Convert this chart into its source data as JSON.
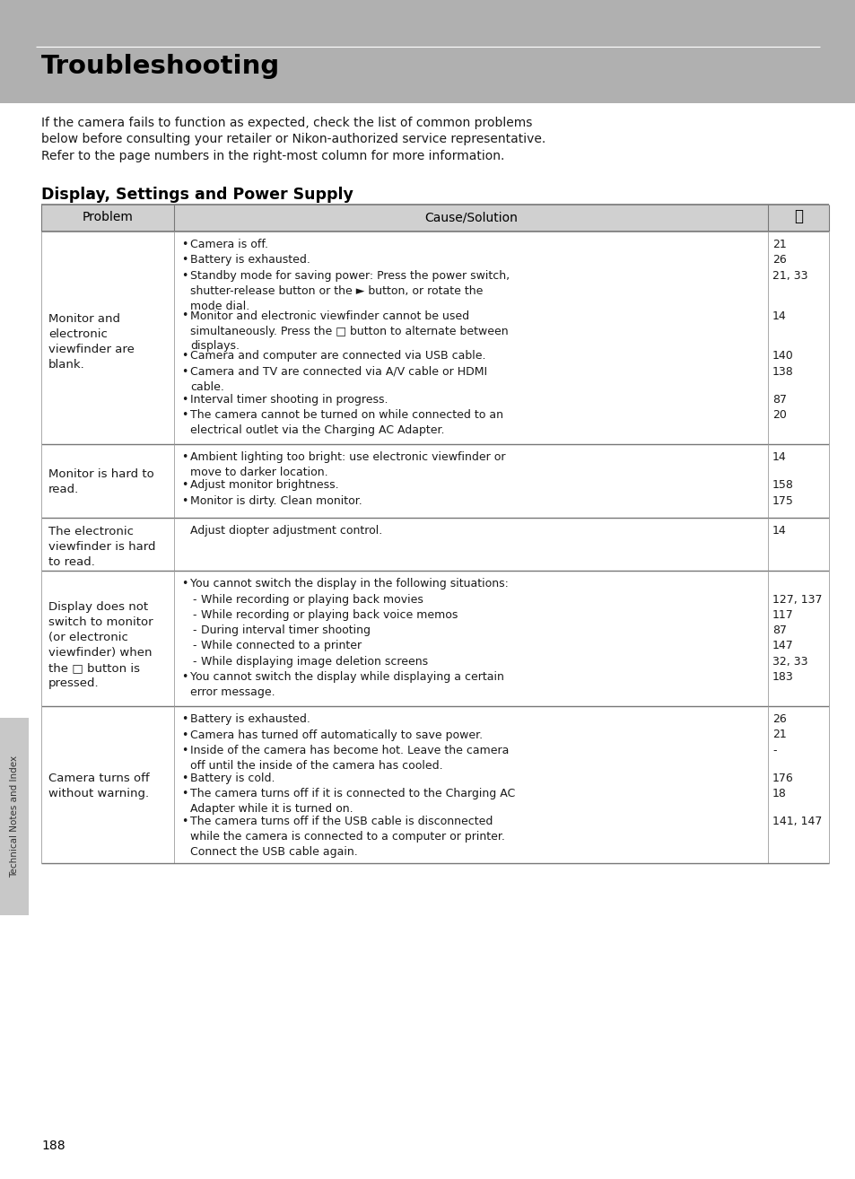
{
  "page_bg": "#ffffff",
  "header_bg": "#b0b0b0",
  "header_text": "Troubleshooting",
  "intro_text": "If the camera fails to function as expected, check the list of common problems\nbelow before consulting your retailer or Nikon-authorized service representative.\nRefer to the page numbers in the right-most column for more information.",
  "section_title": "Display, Settings and Power Supply",
  "col_header_bg": "#d0d0d0",
  "table_rows": [
    {
      "problem": "Monitor and\nelectronic\nviewfinder are\nblank.",
      "causes": [
        {
          "bullet": "•",
          "indent": 0,
          "text": "Camera is off.",
          "page": "21"
        },
        {
          "bullet": "•",
          "indent": 0,
          "text": "Battery is exhausted.",
          "page": "26"
        },
        {
          "bullet": "•",
          "indent": 0,
          "text": "Standby mode for saving power: Press the power switch,\nshutter-release button or the ► button, or rotate the\nmode dial.",
          "page": "21, 33"
        },
        {
          "bullet": "•",
          "indent": 0,
          "text": "Monitor and electronic viewfinder cannot be used\nsimultaneously. Press the □ button to alternate between\ndisplays.",
          "page": "14"
        },
        {
          "bullet": "•",
          "indent": 0,
          "text": "Camera and computer are connected via USB cable.",
          "page": "140"
        },
        {
          "bullet": "•",
          "indent": 0,
          "text": "Camera and TV are connected via A/V cable or HDMI\ncable.",
          "page": "138"
        },
        {
          "bullet": "•",
          "indent": 0,
          "text": "Interval timer shooting in progress.",
          "page": "87"
        },
        {
          "bullet": "•",
          "indent": 0,
          "text": "The camera cannot be turned on while connected to an\nelectrical outlet via the Charging AC Adapter.",
          "page": "20"
        }
      ]
    },
    {
      "problem": "Monitor is hard to\nread.",
      "causes": [
        {
          "bullet": "•",
          "indent": 0,
          "text": "Ambient lighting too bright: use electronic viewfinder or\nmove to darker location.",
          "page": "14"
        },
        {
          "bullet": "•",
          "indent": 0,
          "text": "Adjust monitor brightness.",
          "page": "158"
        },
        {
          "bullet": "•",
          "indent": 0,
          "text": "Monitor is dirty. Clean monitor.",
          "page": "175"
        }
      ]
    },
    {
      "problem": "The electronic\nviewfinder is hard\nto read.",
      "causes": [
        {
          "bullet": "",
          "indent": 0,
          "text": "Adjust diopter adjustment control.",
          "page": "14"
        }
      ]
    },
    {
      "problem": "Display does not\nswitch to monitor\n(or electronic\nviewfinder) when\nthe □ button is\npressed.",
      "causes": [
        {
          "bullet": "•",
          "indent": 0,
          "text": "You cannot switch the display in the following situations:",
          "page": ""
        },
        {
          "bullet": "-",
          "indent": 1,
          "text": "While recording or playing back movies",
          "page": "127, 137"
        },
        {
          "bullet": "-",
          "indent": 1,
          "text": "While recording or playing back voice memos",
          "page": "117"
        },
        {
          "bullet": "-",
          "indent": 1,
          "text": "During interval timer shooting",
          "page": "87"
        },
        {
          "bullet": "-",
          "indent": 1,
          "text": "While connected to a printer",
          "page": "147"
        },
        {
          "bullet": "-",
          "indent": 1,
          "text": "While displaying image deletion screens",
          "page": "32, 33"
        },
        {
          "bullet": "•",
          "indent": 0,
          "text": "You cannot switch the display while displaying a certain\nerror message.",
          "page": "183"
        }
      ]
    },
    {
      "problem": "Camera turns off\nwithout warning.",
      "causes": [
        {
          "bullet": "•",
          "indent": 0,
          "text": "Battery is exhausted.",
          "page": "26"
        },
        {
          "bullet": "•",
          "indent": 0,
          "text": "Camera has turned off automatically to save power.",
          "page": "21"
        },
        {
          "bullet": "•",
          "indent": 0,
          "text": "Inside of the camera has become hot. Leave the camera\noff until the inside of the camera has cooled.",
          "page": "-"
        },
        {
          "bullet": "•",
          "indent": 0,
          "text": "Battery is cold.",
          "page": "176"
        },
        {
          "bullet": "•",
          "indent": 0,
          "text": "The camera turns off if it is connected to the Charging AC\nAdapter while it is turned on.",
          "page": "18"
        },
        {
          "bullet": "•",
          "indent": 0,
          "text": "The camera turns off if the USB cable is disconnected\nwhile the camera is connected to a computer or printer.\nConnect the USB cable again.",
          "page": "141, 147"
        }
      ]
    }
  ],
  "side_label": "Technical Notes and Index",
  "page_number": "188",
  "text_color": "#1a1a1a",
  "line_color_heavy": "#777777",
  "line_color_light": "#aaaaaa"
}
